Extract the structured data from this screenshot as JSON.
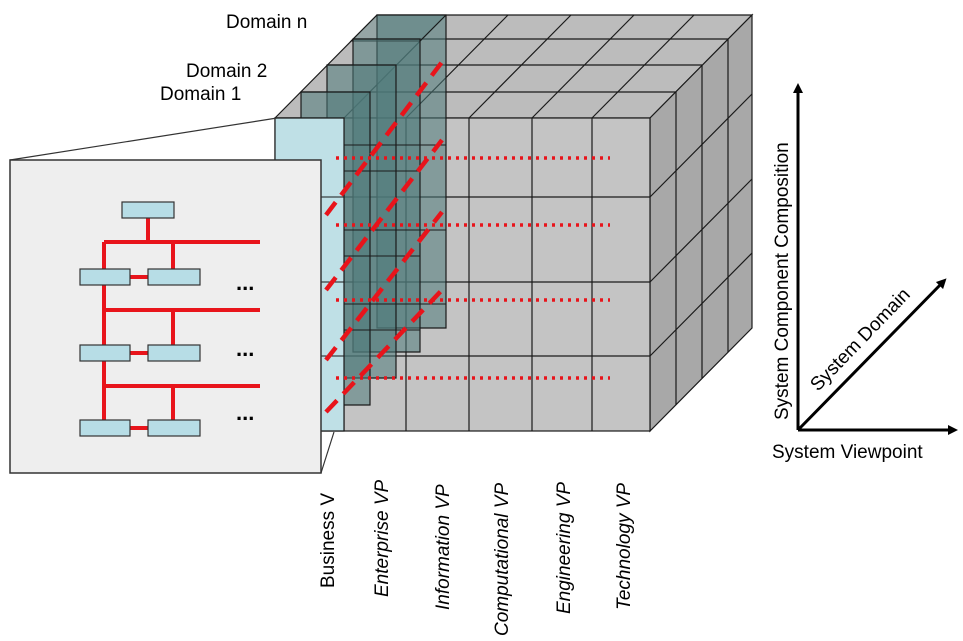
{
  "domain_labels": {
    "domain_n": "Domain n",
    "domain_2": "Domain 2",
    "domain_1": "Domain 1"
  },
  "viewpoints": {
    "business": "Business V",
    "enterprise": "Enterprise VP",
    "information": "Information VP",
    "computational": "Computational VP",
    "engineering": "Engineering VP",
    "technology": "Technology VP"
  },
  "axes": {
    "vertical": "System Component Composition",
    "diagonal": "System Domain",
    "horizontal": "System Viewpoint"
  },
  "ellipsis": [
    "...",
    "...",
    "..."
  ],
  "colors": {
    "cube_front": "#c4c4c4",
    "cube_side": "#a8a8a8",
    "cube_top": "#bcbcbc",
    "grid_line": "#1a1a1a",
    "slice_fill": "#4f7a7a",
    "slice_front": "#bfe0e6",
    "box_fill": "#b7dde6",
    "red": "#e8141b",
    "zoom_panel": "#eeeeee"
  }
}
